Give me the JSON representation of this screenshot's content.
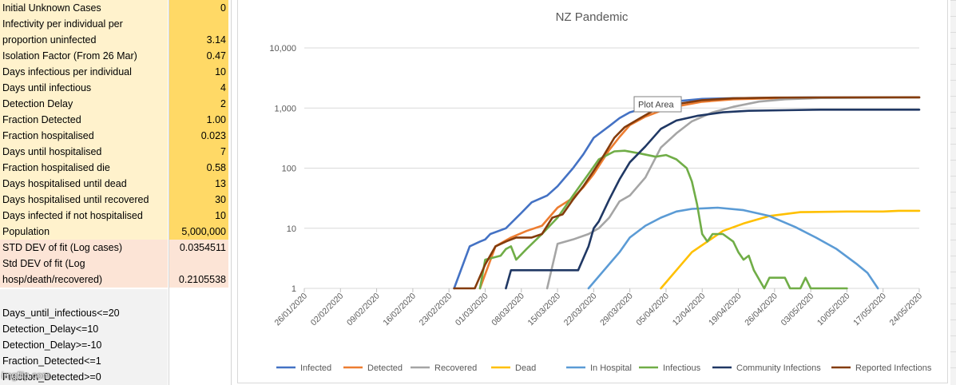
{
  "sheet": {
    "params": [
      {
        "label": "Initial Unknown Cases",
        "value": "0"
      },
      {
        "label": "Infectivity per individual per",
        "value": ""
      },
      {
        "label": "proportion uninfected",
        "value": "3.14"
      },
      {
        "label": "Isolation Factor (From 26 Mar)",
        "value": "0.47"
      },
      {
        "label": "Days infectious per individual",
        "value": "10"
      },
      {
        "label": "Days until infectious",
        "value": "4"
      },
      {
        "label": "Detection Delay",
        "value": "2"
      },
      {
        "label": "Fraction Detected",
        "value": "1.00"
      },
      {
        "label": "Fraction hospitalised",
        "value": "0.023"
      },
      {
        "label": "Days until hospitalised",
        "value": "7"
      },
      {
        "label": "Fraction hospitalised die",
        "value": "0.58"
      },
      {
        "label": "Days hospitalised until dead",
        "value": "13"
      },
      {
        "label": "Days hospitalised until recovered",
        "value": "30"
      },
      {
        "label": "Days infected if not hospitalised",
        "value": "10"
      },
      {
        "label": "Population",
        "value": "5,000,000"
      }
    ],
    "fit_stats": [
      {
        "label": "STD DEV of fit (Log cases)",
        "value": "0.0354511"
      },
      {
        "label": "Std DEV of fit (Log",
        "value": ""
      },
      {
        "label": "hosp/death/recovered)",
        "value": "0.2105538"
      }
    ],
    "constraints": [
      {
        "label": ""
      },
      {
        "label": "Days_until_infectious<=20"
      },
      {
        "label": "Detection_Delay<=10"
      },
      {
        "label": "Detection_Delay>=-10"
      },
      {
        "label": "Fraction_Detected<=1"
      },
      {
        "label": "Fraction_Detected>=0"
      }
    ],
    "colors": {
      "param_label_bg": "#fff2cc",
      "param_value_bg": "#ffd966",
      "fit_bg": "#fce4d6",
      "constraint_bg": "#f2f2f2"
    }
  },
  "watermark": "imgflip.com",
  "chart_data": {
    "type": "line",
    "title": "NZ Pandemic",
    "y_scale": "log",
    "ylim": [
      1,
      10000
    ],
    "y_ticks": [
      "1",
      "10",
      "100",
      "1,000",
      "10,000"
    ],
    "xlim": [
      "2020-01-26",
      "2020-05-24"
    ],
    "x_ticks": [
      "26/01/2020",
      "02/02/2020",
      "09/02/2020",
      "16/02/2020",
      "23/02/2020",
      "01/03/2020",
      "08/03/2020",
      "15/03/2020",
      "22/03/2020",
      "29/03/2020",
      "05/04/2020",
      "12/04/2020",
      "19/04/2020",
      "26/04/2020",
      "03/05/2020",
      "10/05/2020",
      "17/05/2020",
      "24/05/2020"
    ],
    "grid": "horizontal",
    "legend_position": "bottom",
    "tooltip": "Plot Area",
    "series": [
      {
        "name": "Infected",
        "color": "#4472c4",
        "points": [
          [
            "2020-02-24",
            1
          ],
          [
            "2020-02-27",
            5
          ],
          [
            "2020-02-29",
            6
          ],
          [
            "2020-03-01",
            6.5
          ],
          [
            "2020-03-02",
            8
          ],
          [
            "2020-03-05",
            10
          ],
          [
            "2020-03-08",
            18
          ],
          [
            "2020-03-10",
            27
          ],
          [
            "2020-03-13",
            35
          ],
          [
            "2020-03-15",
            50
          ],
          [
            "2020-03-18",
            100
          ],
          [
            "2020-03-20",
            170
          ],
          [
            "2020-03-22",
            320
          ],
          [
            "2020-03-25",
            500
          ],
          [
            "2020-03-27",
            680
          ],
          [
            "2020-03-29",
            850
          ],
          [
            "2020-04-01",
            1000
          ],
          [
            "2020-04-04",
            1150
          ],
          [
            "2020-04-08",
            1320
          ],
          [
            "2020-04-12",
            1420
          ],
          [
            "2020-04-18",
            1460
          ],
          [
            "2020-04-26",
            1480
          ],
          [
            "2020-05-05",
            1500
          ],
          [
            "2020-05-24",
            1500
          ]
        ]
      },
      {
        "name": "Detected",
        "color": "#ed7d31",
        "points": [
          [
            "2020-02-29",
            1
          ],
          [
            "2020-03-03",
            5
          ],
          [
            "2020-03-06",
            7
          ],
          [
            "2020-03-09",
            9
          ],
          [
            "2020-03-12",
            11
          ],
          [
            "2020-03-15",
            22
          ],
          [
            "2020-03-18",
            32
          ],
          [
            "2020-03-20",
            48
          ],
          [
            "2020-03-22",
            80
          ],
          [
            "2020-03-25",
            200
          ],
          [
            "2020-03-27",
            330
          ],
          [
            "2020-03-29",
            520
          ],
          [
            "2020-04-01",
            720
          ],
          [
            "2020-04-04",
            900
          ],
          [
            "2020-04-08",
            1100
          ],
          [
            "2020-04-12",
            1270
          ],
          [
            "2020-04-18",
            1400
          ],
          [
            "2020-04-26",
            1460
          ],
          [
            "2020-05-05",
            1490
          ],
          [
            "2020-05-24",
            1500
          ]
        ]
      },
      {
        "name": "Recovered",
        "color": "#a5a5a5",
        "points": [
          [
            "2020-03-13",
            1
          ],
          [
            "2020-03-15",
            5.5
          ],
          [
            "2020-03-18",
            6.5
          ],
          [
            "2020-03-21",
            8
          ],
          [
            "2020-03-23",
            10
          ],
          [
            "2020-03-25",
            15
          ],
          [
            "2020-03-27",
            28
          ],
          [
            "2020-03-29",
            35
          ],
          [
            "2020-04-01",
            70
          ],
          [
            "2020-04-04",
            220
          ],
          [
            "2020-04-07",
            380
          ],
          [
            "2020-04-10",
            600
          ],
          [
            "2020-04-14",
            850
          ],
          [
            "2020-04-18",
            1050
          ],
          [
            "2020-04-23",
            1280
          ],
          [
            "2020-04-28",
            1400
          ],
          [
            "2020-05-05",
            1470
          ],
          [
            "2020-05-24",
            1500
          ]
        ]
      },
      {
        "name": "Dead",
        "color": "#ffc000",
        "points": [
          [
            "2020-04-04",
            1
          ],
          [
            "2020-04-07",
            2
          ],
          [
            "2020-04-10",
            4
          ],
          [
            "2020-04-13",
            6
          ],
          [
            "2020-04-16",
            9
          ],
          [
            "2020-04-20",
            12
          ],
          [
            "2020-04-25",
            16
          ],
          [
            "2020-05-01",
            18.5
          ],
          [
            "2020-05-10",
            19
          ],
          [
            "2020-05-17",
            19
          ],
          [
            "2020-05-20",
            19.5
          ],
          [
            "2020-05-24",
            19.5
          ]
        ]
      },
      {
        "name": "In Hospital",
        "color": "#5b9bd5",
        "points": [
          [
            "2020-03-21",
            1
          ],
          [
            "2020-03-24",
            2
          ],
          [
            "2020-03-27",
            4
          ],
          [
            "2020-03-29",
            7
          ],
          [
            "2020-04-01",
            11
          ],
          [
            "2020-04-04",
            15
          ],
          [
            "2020-04-07",
            19
          ],
          [
            "2020-04-10",
            21
          ],
          [
            "2020-04-15",
            22
          ],
          [
            "2020-04-20",
            20
          ],
          [
            "2020-04-25",
            16
          ],
          [
            "2020-04-30",
            10.5
          ],
          [
            "2020-05-04",
            7
          ],
          [
            "2020-05-08",
            4.5
          ],
          [
            "2020-05-12",
            2.5
          ],
          [
            "2020-05-14",
            1.8
          ],
          [
            "2020-05-16",
            1
          ]
        ]
      },
      {
        "name": "Infectious",
        "color": "#70ad47",
        "points": [
          [
            "2020-02-29",
            1
          ],
          [
            "2020-03-01",
            3
          ],
          [
            "2020-03-04",
            3.5
          ],
          [
            "2020-03-05",
            4.5
          ],
          [
            "2020-03-06",
            5
          ],
          [
            "2020-03-07",
            3
          ],
          [
            "2020-03-09",
            4.5
          ],
          [
            "2020-03-12",
            8
          ],
          [
            "2020-03-15",
            15
          ],
          [
            "2020-03-18",
            35
          ],
          [
            "2020-03-21",
            80
          ],
          [
            "2020-03-23",
            140
          ],
          [
            "2020-03-26",
            190
          ],
          [
            "2020-03-28",
            195
          ],
          [
            "2020-03-31",
            175
          ],
          [
            "2020-04-03",
            155
          ],
          [
            "2020-04-05",
            165
          ],
          [
            "2020-04-07",
            140
          ],
          [
            "2020-04-09",
            100
          ],
          [
            "2020-04-10",
            60
          ],
          [
            "2020-04-11",
            25
          ],
          [
            "2020-04-12",
            8
          ],
          [
            "2020-04-13",
            6
          ],
          [
            "2020-04-14",
            8
          ],
          [
            "2020-04-16",
            8
          ],
          [
            "2020-04-18",
            6
          ],
          [
            "2020-04-19",
            4
          ],
          [
            "2020-04-20",
            3
          ],
          [
            "2020-04-21",
            3.5
          ],
          [
            "2020-04-22",
            2
          ],
          [
            "2020-04-24",
            1
          ],
          [
            "2020-04-25",
            1.5
          ],
          [
            "2020-04-28",
            1.5
          ],
          [
            "2020-04-29",
            1
          ],
          [
            "2020-05-01",
            1
          ],
          [
            "2020-05-02",
            1.5
          ],
          [
            "2020-05-03",
            1
          ],
          [
            "2020-05-10",
            1
          ]
        ]
      },
      {
        "name": "Community Infections",
        "color": "#203864",
        "points": [
          [
            "2020-03-05",
            1
          ],
          [
            "2020-03-06",
            2
          ],
          [
            "2020-03-16",
            2
          ],
          [
            "2020-03-17",
            2
          ],
          [
            "2020-03-19",
            2
          ],
          [
            "2020-03-21",
            5
          ],
          [
            "2020-03-22",
            10
          ],
          [
            "2020-03-23",
            13
          ],
          [
            "2020-03-25",
            30
          ],
          [
            "2020-03-27",
            65
          ],
          [
            "2020-03-29",
            125
          ],
          [
            "2020-04-01",
            230
          ],
          [
            "2020-04-04",
            450
          ],
          [
            "2020-04-07",
            620
          ],
          [
            "2020-04-11",
            740
          ],
          [
            "2020-04-16",
            850
          ],
          [
            "2020-04-21",
            900
          ],
          [
            "2020-04-28",
            920
          ],
          [
            "2020-05-05",
            940
          ],
          [
            "2020-05-24",
            940
          ]
        ]
      },
      {
        "name": "Reported Infections",
        "color": "#843c0c",
        "points": [
          [
            "2020-02-24",
            1
          ],
          [
            "2020-02-25",
            1
          ],
          [
            "2020-02-28",
            1
          ],
          [
            "2020-03-01",
            2.5
          ],
          [
            "2020-03-03",
            5
          ],
          [
            "2020-03-05",
            6
          ],
          [
            "2020-03-07",
            7
          ],
          [
            "2020-03-10",
            7
          ],
          [
            "2020-03-12",
            8
          ],
          [
            "2020-03-14",
            15
          ],
          [
            "2020-03-16",
            17
          ],
          [
            "2020-03-18",
            30
          ],
          [
            "2020-03-20",
            50
          ],
          [
            "2020-03-22",
            90
          ],
          [
            "2020-03-24",
            165
          ],
          [
            "2020-03-26",
            320
          ],
          [
            "2020-03-28",
            480
          ],
          [
            "2020-03-31",
            680
          ],
          [
            "2020-04-03",
            950
          ],
          [
            "2020-04-07",
            1160
          ],
          [
            "2020-04-12",
            1350
          ],
          [
            "2020-04-18",
            1450
          ],
          [
            "2020-04-26",
            1490
          ],
          [
            "2020-05-05",
            1500
          ],
          [
            "2020-05-24",
            1510
          ]
        ]
      }
    ]
  }
}
